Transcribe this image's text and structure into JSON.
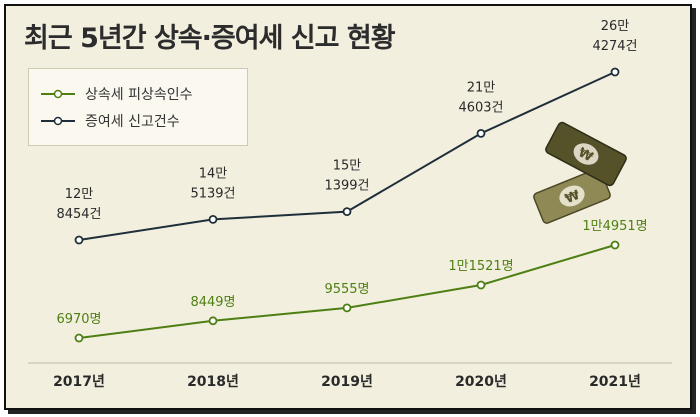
{
  "title": "최근 5년간 상속·증여세 신고 현황",
  "colors": {
    "background": "#f3efdf",
    "inheritance": "#4e7f12",
    "gift": "#1f2f3a",
    "money_dark": "#55522a",
    "money_light": "#8f8a55"
  },
  "icons": [
    "money-bill-icon",
    "money-bill-icon"
  ],
  "chart_data": {
    "type": "line",
    "title": "최근 5년간 상속·증여세 신고 현황",
    "xlabel": "",
    "ylabel": "",
    "categories": [
      "2017년",
      "2018년",
      "2019년",
      "2020년",
      "2021년"
    ],
    "legend_position": "top-left",
    "grid": false,
    "series": [
      {
        "name": "상속세 피상속인수",
        "color": "#4e7f12",
        "values": [
          6970,
          8449,
          9555,
          11521,
          14951
        ],
        "labels": [
          "6970명",
          "8449명",
          "9555명",
          "1만1521명",
          "1만4951명"
        ]
      },
      {
        "name": "증여세 신고건수",
        "color": "#1f2f3a",
        "values": [
          128454,
          145139,
          151399,
          214603,
          264274
        ],
        "labels": [
          [
            "12만",
            "8454건"
          ],
          [
            "14만",
            "5139건"
          ],
          [
            "15만",
            "1399건"
          ],
          [
            "21만",
            "4603건"
          ],
          [
            "26만",
            "4274건"
          ]
        ]
      }
    ]
  }
}
